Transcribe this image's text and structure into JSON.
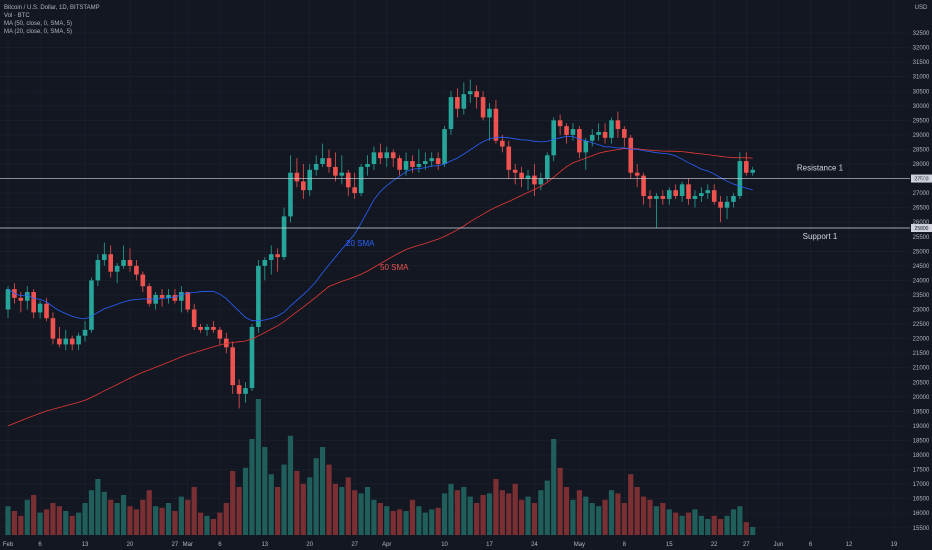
{
  "legend": {
    "title": "Bitcoin / U.S. Dollar, 1D, BITSTAMP",
    "vol": "Vol · BTC",
    "ma50": "MA (50, close, 0, SMA, 5)",
    "ma20": "MA (20, close, 0, SMA, 5)"
  },
  "chart_data": {
    "type": "candlestick",
    "y_axis_unit": "USD",
    "ylim": [
      15000,
      33000
    ],
    "y_ticks": [
      15500,
      16000,
      16500,
      17000,
      17500,
      18000,
      18500,
      19000,
      19500,
      20000,
      20500,
      21000,
      21500,
      22000,
      22500,
      23000,
      23500,
      24000,
      24500,
      25000,
      25500,
      26000,
      26500,
      27000,
      27500,
      28000,
      28500,
      29000,
      29500,
      30000,
      30500,
      31000,
      31500,
      32000,
      32500
    ],
    "x_ticks": [
      {
        "label": "Feb",
        "day": 0
      },
      {
        "label": "6",
        "day": 5
      },
      {
        "label": "13",
        "day": 12
      },
      {
        "label": "20",
        "day": 19
      },
      {
        "label": "27",
        "day": 26
      },
      {
        "label": "Mar",
        "day": 28
      },
      {
        "label": "6",
        "day": 33
      },
      {
        "label": "13",
        "day": 40
      },
      {
        "label": "20",
        "day": 47
      },
      {
        "label": "27",
        "day": 54
      },
      {
        "label": "Apr",
        "day": 59
      },
      {
        "label": "10",
        "day": 68
      },
      {
        "label": "17",
        "day": 75
      },
      {
        "label": "24",
        "day": 82
      },
      {
        "label": "May",
        "day": 89
      },
      {
        "label": "8",
        "day": 96
      },
      {
        "label": "15",
        "day": 103
      },
      {
        "label": "22",
        "day": 110
      },
      {
        "label": "27",
        "day": 115
      },
      {
        "label": "Jun",
        "day": 120
      },
      {
        "label": "6",
        "day": 125
      },
      {
        "label": "12",
        "day": 131
      },
      {
        "label": "19",
        "day": 138
      }
    ],
    "candles": [
      [
        23000,
        23800,
        22700,
        23700
      ],
      [
        23700,
        23900,
        23200,
        23400
      ],
      [
        23400,
        23600,
        22900,
        23300
      ],
      [
        23300,
        23800,
        23000,
        23600
      ],
      [
        23600,
        23700,
        22700,
        22900
      ],
      [
        22900,
        23300,
        22700,
        23200
      ],
      [
        23200,
        23400,
        22600,
        22700
      ],
      [
        22700,
        22900,
        21800,
        22000
      ],
      [
        22000,
        22400,
        21700,
        21800
      ],
      [
        21800,
        22300,
        21600,
        22000
      ],
      [
        22000,
        22100,
        21600,
        21800
      ],
      [
        21800,
        22200,
        21600,
        22100
      ],
      [
        22100,
        22600,
        21900,
        22300
      ],
      [
        22300,
        24100,
        22200,
        24000
      ],
      [
        24000,
        24900,
        23800,
        24700
      ],
      [
        24700,
        25300,
        24500,
        24900
      ],
      [
        24900,
        25200,
        24100,
        24300
      ],
      [
        24300,
        24600,
        23900,
        24500
      ],
      [
        24500,
        25200,
        24400,
        24700
      ],
      [
        24700,
        25100,
        24300,
        24500
      ],
      [
        24500,
        24700,
        24000,
        24200
      ],
      [
        24200,
        24300,
        23600,
        23800
      ],
      [
        23800,
        23900,
        23100,
        23200
      ],
      [
        23200,
        23600,
        23000,
        23500
      ],
      [
        23500,
        23700,
        23100,
        23400
      ],
      [
        23400,
        23700,
        23200,
        23500
      ],
      [
        23500,
        23700,
        23200,
        23300
      ],
      [
        23300,
        23800,
        22900,
        23600
      ],
      [
        23600,
        23600,
        22900,
        23000
      ],
      [
        23000,
        23200,
        22300,
        22400
      ],
      [
        22400,
        22500,
        22200,
        22300
      ],
      [
        22300,
        22500,
        22100,
        22400
      ],
      [
        22400,
        22600,
        22200,
        22300
      ],
      [
        22300,
        22400,
        21800,
        22000
      ],
      [
        22000,
        22200,
        21500,
        21700
      ],
      [
        21700,
        21900,
        20100,
        20400
      ],
      [
        20400,
        20600,
        19600,
        20100
      ],
      [
        20100,
        20500,
        19800,
        20300
      ],
      [
        20300,
        22500,
        20200,
        22400
      ],
      [
        22400,
        24700,
        22200,
        24500
      ],
      [
        24500,
        24800,
        24000,
        24700
      ],
      [
        24700,
        25200,
        24200,
        24900
      ],
      [
        24900,
        25100,
        24300,
        24800
      ],
      [
        24800,
        26500,
        24700,
        26200
      ],
      [
        26200,
        28300,
        26000,
        27700
      ],
      [
        27700,
        28200,
        27200,
        27400
      ],
      [
        27400,
        28000,
        26800,
        27100
      ],
      [
        27100,
        28000,
        26900,
        27800
      ],
      [
        27800,
        28300,
        27600,
        28000
      ],
      [
        28000,
        28700,
        27900,
        28200
      ],
      [
        28200,
        28500,
        27700,
        27900
      ],
      [
        27900,
        28400,
        27400,
        27600
      ],
      [
        27600,
        28300,
        27300,
        27700
      ],
      [
        27700,
        27800,
        26900,
        27200
      ],
      [
        27200,
        27700,
        26800,
        27000
      ],
      [
        27000,
        28000,
        26900,
        27900
      ],
      [
        27900,
        28300,
        27600,
        28000
      ],
      [
        28000,
        28600,
        27800,
        28400
      ],
      [
        28400,
        28700,
        28000,
        28200
      ],
      [
        28200,
        28600,
        27900,
        28400
      ],
      [
        28400,
        28500,
        27900,
        28200
      ],
      [
        28200,
        28300,
        27600,
        27800
      ],
      [
        27800,
        28400,
        27600,
        28100
      ],
      [
        28100,
        28300,
        27700,
        27900
      ],
      [
        27900,
        28500,
        27700,
        28000
      ],
      [
        28000,
        28400,
        27800,
        28100
      ],
      [
        28100,
        28400,
        27900,
        28200
      ],
      [
        28200,
        28400,
        27800,
        28000
      ],
      [
        28000,
        29300,
        27900,
        29200
      ],
      [
        29200,
        30500,
        29000,
        30300
      ],
      [
        30300,
        30600,
        29600,
        29900
      ],
      [
        29900,
        30800,
        29700,
        30400
      ],
      [
        30400,
        30900,
        30100,
        30500
      ],
      [
        30500,
        30700,
        29900,
        30300
      ],
      [
        30300,
        30500,
        29500,
        29600
      ],
      [
        29600,
        30100,
        28800,
        29900
      ],
      [
        29900,
        30200,
        28700,
        28800
      ],
      [
        28800,
        29000,
        28400,
        28600
      ],
      [
        28600,
        28800,
        27500,
        27800
      ],
      [
        27800,
        28000,
        27300,
        27700
      ],
      [
        27700,
        27900,
        27200,
        27500
      ],
      [
        27500,
        27800,
        27100,
        27600
      ],
      [
        27600,
        28000,
        26900,
        27300
      ],
      [
        27300,
        27700,
        27100,
        27500
      ],
      [
        27500,
        28400,
        27400,
        28300
      ],
      [
        28300,
        29600,
        28100,
        29500
      ],
      [
        29500,
        29700,
        29000,
        29300
      ],
      [
        29300,
        29400,
        28700,
        29000
      ],
      [
        29000,
        29400,
        28800,
        29200
      ],
      [
        29200,
        29300,
        28200,
        28400
      ],
      [
        28400,
        28900,
        27800,
        28800
      ],
      [
        28800,
        29200,
        28600,
        29000
      ],
      [
        29000,
        29400,
        28800,
        29100
      ],
      [
        29100,
        29400,
        28700,
        28900
      ],
      [
        28900,
        29600,
        28700,
        29500
      ],
      [
        29500,
        29800,
        28900,
        29200
      ],
      [
        29200,
        29300,
        28600,
        28900
      ],
      [
        28900,
        29000,
        27500,
        27700
      ],
      [
        27700,
        28000,
        27200,
        27600
      ],
      [
        27600,
        27700,
        26600,
        26900
      ],
      [
        26900,
        27100,
        26500,
        26800
      ],
      [
        26800,
        27000,
        25800,
        26900
      ],
      [
        26900,
        27100,
        26600,
        26800
      ],
      [
        26800,
        27200,
        26600,
        27100
      ],
      [
        27100,
        27300,
        26800,
        26900
      ],
      [
        26900,
        27400,
        26700,
        27300
      ],
      [
        27300,
        27500,
        26600,
        26800
      ],
      [
        26800,
        27100,
        26500,
        26900
      ],
      [
        26900,
        27200,
        26700,
        27000
      ],
      [
        27000,
        27300,
        26800,
        27100
      ],
      [
        27100,
        27300,
        26600,
        26700
      ],
      [
        26700,
        26900,
        26000,
        26500
      ],
      [
        26500,
        26900,
        26100,
        26700
      ],
      [
        26700,
        27000,
        26500,
        26900
      ],
      [
        26900,
        28400,
        26800,
        28100
      ],
      [
        28100,
        28400,
        27600,
        27700
      ],
      [
        27700,
        27900,
        27600,
        27800
      ]
    ],
    "volume": [
      0.18,
      0.15,
      0.12,
      0.22,
      0.25,
      0.14,
      0.16,
      0.2,
      0.18,
      0.15,
      0.12,
      0.14,
      0.2,
      0.28,
      0.35,
      0.27,
      0.22,
      0.2,
      0.25,
      0.18,
      0.16,
      0.22,
      0.28,
      0.18,
      0.17,
      0.2,
      0.15,
      0.24,
      0.22,
      0.3,
      0.14,
      0.12,
      0.1,
      0.14,
      0.2,
      0.4,
      0.3,
      0.42,
      0.6,
      0.85,
      0.55,
      0.38,
      0.3,
      0.44,
      0.62,
      0.4,
      0.32,
      0.36,
      0.48,
      0.55,
      0.44,
      0.32,
      0.3,
      0.36,
      0.28,
      0.26,
      0.3,
      0.22,
      0.2,
      0.18,
      0.15,
      0.16,
      0.15,
      0.22,
      0.18,
      0.14,
      0.16,
      0.17,
      0.26,
      0.32,
      0.28,
      0.3,
      0.24,
      0.2,
      0.25,
      0.26,
      0.35,
      0.28,
      0.26,
      0.32,
      0.22,
      0.24,
      0.2,
      0.28,
      0.34,
      0.6,
      0.42,
      0.3,
      0.22,
      0.28,
      0.24,
      0.2,
      0.18,
      0.22,
      0.28,
      0.26,
      0.2,
      0.38,
      0.3,
      0.24,
      0.22,
      0.18,
      0.2,
      0.16,
      0.14,
      0.12,
      0.14,
      0.16,
      0.12,
      0.1,
      0.12,
      0.1,
      0.12,
      0.16,
      0.18,
      0.08,
      0.05
    ],
    "sma_labels": {
      "sma20": "20 SMA",
      "sma50": "50 SMA"
    },
    "lines": [
      {
        "label": "Resistance 1",
        "value": 27500,
        "tag": "27500"
      },
      {
        "label": "Support 1",
        "value": 25800,
        "tag": "25800"
      }
    ],
    "colors": {
      "up": "#26a69a",
      "down": "#ef5350",
      "vol_up": "#1f5e5a",
      "vol_down": "#7a2f33",
      "sma20": "#2962ff",
      "sma50": "#e53935",
      "grid": "#1e222d"
    }
  }
}
